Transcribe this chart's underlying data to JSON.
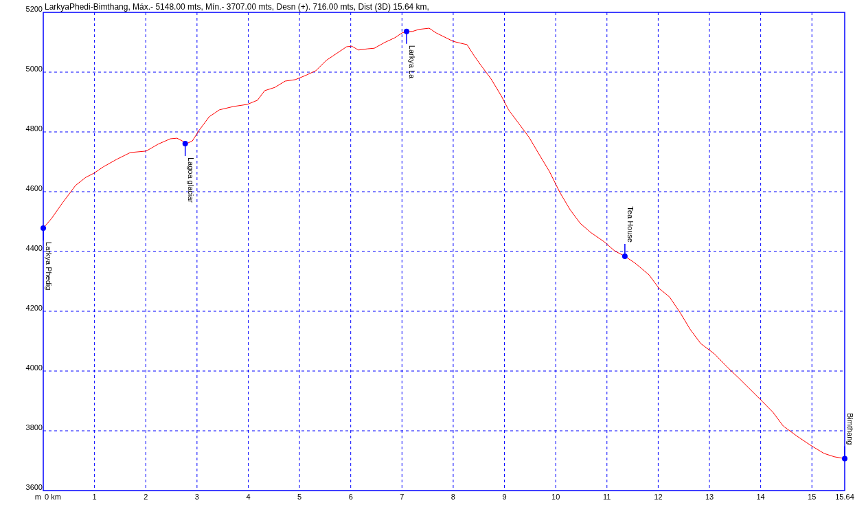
{
  "chart_data": {
    "type": "line",
    "title": "LarkyaPhedi-Bimthang, Máx.- 5148.00 mts, Mín.- 3707.00 mts, Desn (+). 716.00 mts, Dist (3D) 15.64 km,",
    "ylabel": "m",
    "xlim": [
      0,
      15.64
    ],
    "xticks": [
      {
        "value": 0,
        "label": "0 km"
      },
      1,
      2,
      3,
      4,
      5,
      6,
      7,
      8,
      9,
      10,
      11,
      12,
      13,
      14,
      15,
      15.64
    ],
    "ylim": [
      3600,
      5200
    ],
    "yticks": [
      3600,
      3800,
      4000,
      4200,
      4400,
      4600,
      4800,
      5000,
      5200
    ],
    "grid": true,
    "series": [
      {
        "color": "#ff0000",
        "marker": "none",
        "x": [
          0,
          0.16,
          0.36,
          0.63,
          0.83,
          0.99,
          1.17,
          1.43,
          1.7,
          2.01,
          2.24,
          2.48,
          2.61,
          2.71,
          2.8,
          2.91,
          3.04,
          3.24,
          3.44,
          3.71,
          3.98,
          4.18,
          4.32,
          4.52,
          4.72,
          4.92,
          5.12,
          5.32,
          5.52,
          5.72,
          5.92,
          6.02,
          6.15,
          6.33,
          6.46,
          6.66,
          6.86,
          7.0,
          7.09,
          7.2,
          7.33,
          7.53,
          7.67,
          7.8,
          8.0,
          8.14,
          8.27,
          8.4,
          8.54,
          8.74,
          8.94,
          9.08,
          9.28,
          9.48,
          9.68,
          9.88,
          10.08,
          10.28,
          10.48,
          10.68,
          10.95,
          11.15,
          11.35,
          11.55,
          11.82,
          12.02,
          12.22,
          12.43,
          12.63,
          12.83,
          13.1,
          13.36,
          13.57,
          13.77,
          14.04,
          14.24,
          14.44,
          14.71,
          14.97,
          15.24,
          15.44,
          15.64
        ],
        "values": [
          4478,
          4510,
          4559,
          4621,
          4648,
          4662,
          4683,
          4708,
          4731,
          4736,
          4759,
          4777,
          4779,
          4770,
          4761,
          4770,
          4805,
          4851,
          4874,
          4885,
          4892,
          4906,
          4938,
          4949,
          4970,
          4975,
          4989,
          5005,
          5039,
          5062,
          5085,
          5087,
          5074,
          5078,
          5080,
          5099,
          5115,
          5131,
          5136,
          5136,
          5143,
          5147,
          5131,
          5120,
          5103,
          5097,
          5092,
          5057,
          5023,
          4977,
          4920,
          4874,
          4828,
          4782,
          4724,
          4667,
          4598,
          4540,
          4494,
          4464,
          4432,
          4402,
          4384,
          4361,
          4322,
          4276,
          4248,
          4195,
          4138,
          4092,
          4057,
          4011,
          3977,
          3943,
          3897,
          3862,
          3816,
          3782,
          3752,
          3724,
          3713,
          3707
        ]
      },
      {
        "type": "scatter",
        "color": "#0000ff",
        "marker": "circle",
        "x": [
          0,
          2.77,
          7.09,
          11.35,
          15.64
        ],
        "values": [
          4478,
          4761,
          5136,
          4384,
          3707
        ]
      }
    ],
    "annotations": [
      {
        "text": "Larkya Phedig",
        "x": 0,
        "y": 4478
      },
      {
        "text": "Lagoa glaciar",
        "x": 2.77,
        "y": 4761
      },
      {
        "text": "Larkya La",
        "x": 7.09,
        "y": 5136
      },
      {
        "text": "Tea House",
        "x": 11.35,
        "y": 4384
      },
      {
        "text": "Bimthang",
        "x": 15.64,
        "y": 3707
      }
    ]
  }
}
